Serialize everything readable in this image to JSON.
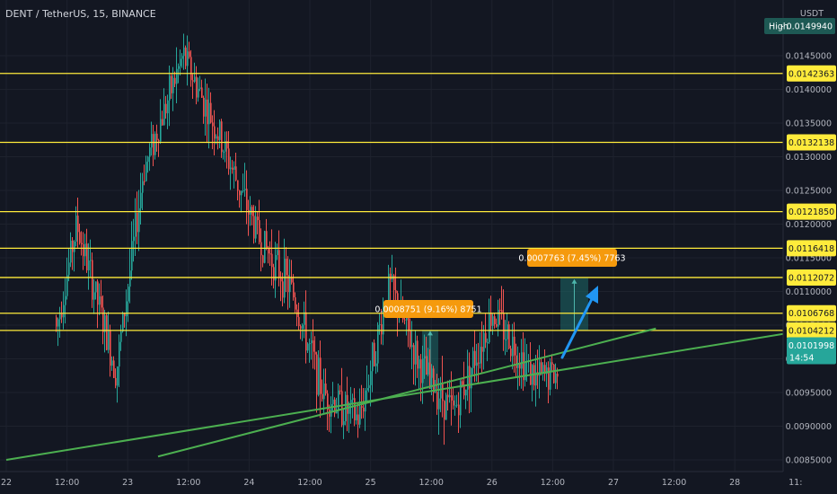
{
  "header": {
    "symbol_title": "DENT / TetherUS, 15, BINANCE"
  },
  "price_scale": {
    "currency": "USDT",
    "high_label": "High",
    "high_value": "0.0149940",
    "ticks": [
      "0.0145000",
      "0.0140000",
      "0.0135000",
      "0.0130000",
      "0.0125000",
      "0.0120000",
      "0.0115000",
      "0.0110000",
      "0.0105000",
      "0.0100000",
      "0.0095000",
      "0.0090000",
      "0.0085000"
    ],
    "current_price": "0.0101998",
    "countdown": "14:54"
  },
  "time_scale": {
    "labels": [
      "22",
      "12:00",
      "23",
      "12:00",
      "24",
      "12:00",
      "25",
      "12:00",
      "26",
      "12:00",
      "27",
      "12:00",
      "28",
      "11:"
    ]
  },
  "horizontal_levels": [
    "0.0142363",
    "0.0132138",
    "0.0121850",
    "0.0116418",
    "0.0112072",
    "0.0106768",
    "0.0104212"
  ],
  "measurements": [
    {
      "label": "0.0008751 (9.16%) 8751"
    },
    {
      "label": "0.0007763 (7.45%) 7763"
    }
  ],
  "colors": {
    "background": "#131722",
    "level_line": "#ffeb3b",
    "trendline": "#4caf50",
    "candle_up": "#26a69a",
    "candle_down": "#ef5350",
    "measure_tag": "#f59a0d",
    "measure_box": "#1d6a68",
    "arrow": "#2196f3",
    "current_price_tag": "#26a69a"
  },
  "chart_data": {
    "type": "candlestick",
    "title": "DENT / TetherUS, 15, BINANCE",
    "y_unit": "USDT",
    "ylim": [
      0.0085,
      0.015
    ],
    "x_labels": [
      "22",
      "12:00",
      "23",
      "12:00",
      "24",
      "12:00",
      "25",
      "12:00",
      "26",
      "12:00",
      "27",
      "12:00",
      "28"
    ],
    "series_high": 0.014994,
    "last_price": 0.0101998,
    "horizontal_levels": [
      0.0142363,
      0.0132138,
      0.012185,
      0.0116418,
      0.0112072,
      0.0106768,
      0.0104212
    ],
    "price_path": [
      [
        0.0,
        0.0086
      ],
      [
        1.0,
        0.009
      ],
      [
        2.3,
        0.012
      ],
      [
        3.6,
        0.0098
      ],
      [
        4.5,
        0.0128
      ],
      [
        5.8,
        0.0145
      ],
      [
        7.0,
        0.0133
      ],
      [
        8.3,
        0.0118
      ],
      [
        9.4,
        0.011
      ],
      [
        10.4,
        0.0095
      ],
      [
        11.6,
        0.0091
      ],
      [
        12.6,
        0.0111
      ],
      [
        13.6,
        0.0099
      ],
      [
        14.7,
        0.0092
      ],
      [
        16.0,
        0.0107
      ],
      [
        17.4,
        0.0097
      ],
      [
        18.4,
        0.0098
      ],
      [
        20.0,
        0.0099
      ],
      [
        21.0,
        0.01
      ],
      [
        21.8,
        0.0104
      ],
      [
        22.3,
        0.01019
      ]
    ],
    "measurements": [
      {
        "from": 0.0095537,
        "to": 0.0104288,
        "delta": 0.0008751,
        "percent": 9.16
      },
      {
        "from": 0.0104212,
        "to": 0.0111975,
        "delta": 0.0007763,
        "percent": 7.45
      }
    ],
    "trendlines": [
      {
        "from": [
          0.0,
          0.0085
        ],
        "to": [
          26.7,
          0.01045
        ]
      },
      {
        "from": [
          5.0,
          0.00855
        ],
        "to": [
          21.4,
          0.01045
        ]
      }
    ]
  }
}
